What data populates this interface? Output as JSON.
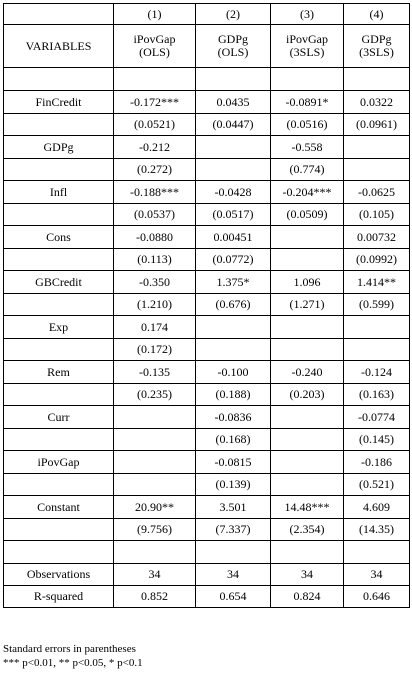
{
  "header": {
    "numbers": [
      "(1)",
      "(2)",
      "(3)",
      "(4)"
    ],
    "variables_label": "VARIABLES",
    "models": [
      [
        "iPovGap",
        "(OLS)"
      ],
      [
        "GDPg",
        "(OLS)"
      ],
      [
        "iPovGap",
        "(3SLS)"
      ],
      [
        "GDPg",
        "(3SLS)"
      ]
    ]
  },
  "rows": [
    {
      "name": "FinCredit",
      "coef": [
        "-0.172***",
        "0.0435",
        "-0.0891*",
        "0.0322"
      ],
      "se": [
        "(0.0521)",
        "(0.0447)",
        "(0.0516)",
        "(0.0961)"
      ]
    },
    {
      "name": "GDPg",
      "coef": [
        "-0.212",
        null,
        "-0.558",
        null
      ],
      "se": [
        "(0.272)",
        null,
        "(0.774)",
        null
      ]
    },
    {
      "name": "Infl",
      "coef": [
        "-0.188***",
        "-0.0428",
        "-0.204***",
        "-0.0625"
      ],
      "se": [
        "(0.0537)",
        "(0.0517)",
        "(0.0509)",
        "(0.105)"
      ]
    },
    {
      "name": "Cons",
      "coef": [
        "-0.0880",
        "0.00451",
        null,
        "0.00732"
      ],
      "se": [
        "(0.113)",
        "(0.0772)",
        null,
        "(0.0992)"
      ]
    },
    {
      "name": "GBCredit",
      "coef": [
        "-0.350",
        "1.375*",
        "1.096",
        "1.414**"
      ],
      "se": [
        "(1.210)",
        "(0.676)",
        "(1.271)",
        "(0.599)"
      ]
    },
    {
      "name": "Exp",
      "coef": [
        "0.174",
        null,
        null,
        null
      ],
      "se": [
        "(0.172)",
        null,
        null,
        null
      ]
    },
    {
      "name": "Rem",
      "coef": [
        "-0.135",
        "-0.100",
        "-0.240",
        "-0.124"
      ],
      "se": [
        "(0.235)",
        "(0.188)",
        "(0.203)",
        "(0.163)"
      ]
    },
    {
      "name": "Curr",
      "coef": [
        null,
        "-0.0836",
        null,
        "-0.0774"
      ],
      "se": [
        null,
        "(0.168)",
        null,
        "(0.145)"
      ]
    },
    {
      "name": "iPovGap",
      "coef": [
        null,
        "-0.0815",
        null,
        "-0.186"
      ],
      "se": [
        null,
        "(0.139)",
        null,
        "(0.521)"
      ]
    },
    {
      "name": "Constant",
      "coef": [
        "20.90**",
        "3.501",
        "14.48***",
        "4.609"
      ],
      "se": [
        "(9.756)",
        "(7.337)",
        "(2.354)",
        "(14.35)"
      ]
    }
  ],
  "stats": [
    {
      "name": "Observations",
      "values": [
        "34",
        "34",
        "34",
        "34"
      ]
    },
    {
      "name": "R-squared",
      "values": [
        "0.852",
        "0.654",
        "0.824",
        "0.646"
      ]
    }
  ],
  "notes": [
    "Standard errors in parentheses",
    "*** p<0.01, ** p<0.05, * p<0.1"
  ]
}
